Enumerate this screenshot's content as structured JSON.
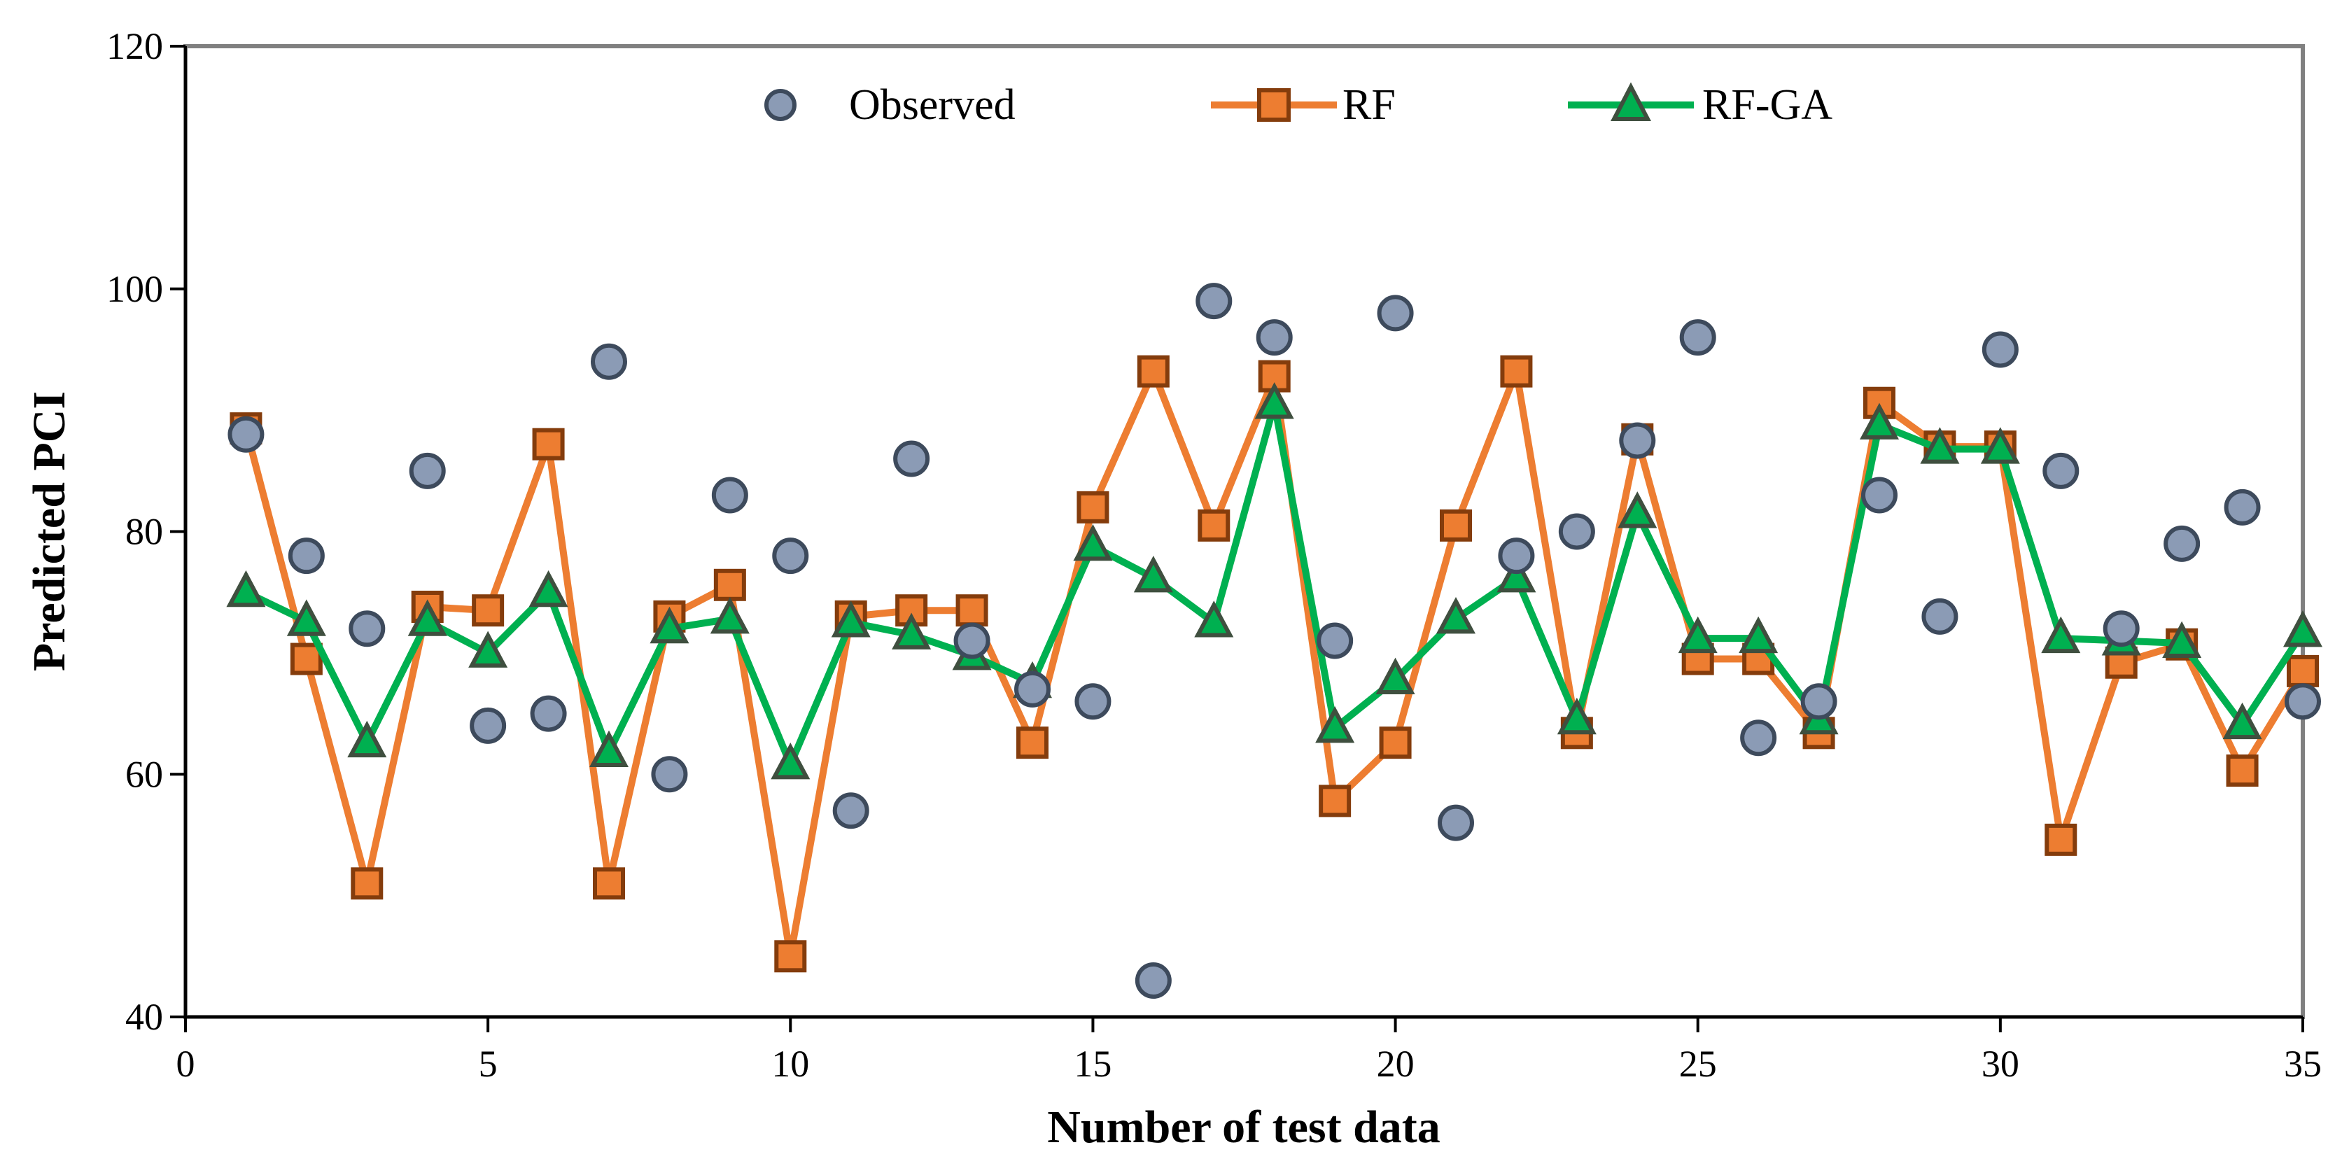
{
  "chart_data": {
    "type": "line",
    "title": "",
    "xlabel": "Number of test data",
    "ylabel": "Predicted PCI",
    "xlim": [
      0,
      35
    ],
    "ylim": [
      40,
      120
    ],
    "xticks": [
      0,
      5,
      10,
      15,
      20,
      25,
      30,
      35
    ],
    "yticks": [
      40,
      60,
      80,
      100,
      120
    ],
    "xtick_labels": [
      "0",
      "5",
      "10",
      "15",
      "20",
      "25",
      "30",
      "35"
    ],
    "ytick_labels": [
      "40",
      "60",
      "80",
      "100",
      "120"
    ],
    "grid": false,
    "legend_position": "top-center",
    "x": [
      1,
      2,
      3,
      4,
      5,
      6,
      7,
      8,
      9,
      10,
      11,
      12,
      13,
      14,
      15,
      16,
      17,
      18,
      19,
      20,
      21,
      22,
      23,
      24,
      25,
      26,
      27,
      28,
      29,
      30,
      31,
      32,
      33,
      34,
      35
    ],
    "series": [
      {
        "name": "Observed",
        "style": "markers",
        "marker": "circle",
        "color": "#8B9BB5",
        "edge_color": "#3D4A5C",
        "values": [
          88,
          78,
          72,
          85,
          64,
          65,
          94,
          60,
          83,
          78,
          57,
          86,
          71,
          67,
          66,
          43,
          99,
          96,
          71,
          98,
          56,
          78,
          80,
          87.5,
          96,
          63,
          66,
          83,
          73,
          95,
          85,
          72,
          79,
          82,
          66
        ]
      },
      {
        "name": "RF",
        "style": "line+markers",
        "marker": "square",
        "color": "#ED7D31",
        "edge_color": "#843C0C",
        "values": [
          88.5,
          69.5,
          51,
          73.8,
          73.5,
          87.2,
          51,
          73,
          75.6,
          45,
          73,
          73.5,
          73.5,
          62.6,
          82,
          93.2,
          80.5,
          92.8,
          57.8,
          62.6,
          80.5,
          93.2,
          63.4,
          87.6,
          69.5,
          69.5,
          63.4,
          90.6,
          87,
          87,
          54.6,
          69.2,
          70.7,
          60.3,
          68.5
        ]
      },
      {
        "name": "RF-GA",
        "style": "line+markers",
        "marker": "triangle",
        "color": "#00B050",
        "edge_color": "#3F4F3F",
        "values": [
          75,
          72.6,
          62.6,
          72.6,
          70,
          75,
          61.8,
          72,
          72.8,
          60.8,
          72.5,
          71.5,
          69.8,
          67.5,
          78.8,
          76.2,
          72.5,
          90.5,
          63.8,
          67.8,
          72.8,
          76.2,
          64.5,
          81.5,
          71.2,
          71.2,
          64.5,
          88.8,
          86.8,
          86.8,
          71.2,
          71,
          70.8,
          64.1,
          71.7
        ]
      }
    ]
  }
}
